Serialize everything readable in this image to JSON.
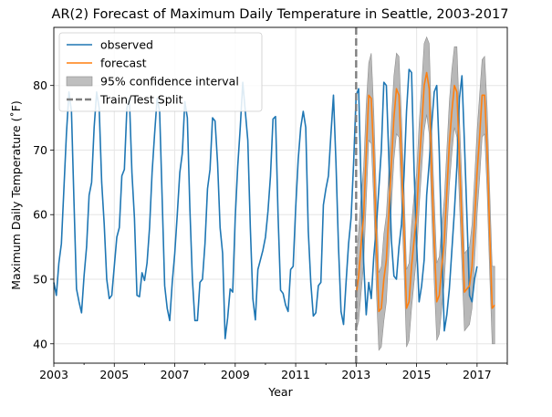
{
  "chart_data": {
    "type": "line",
    "title": "AR(2) Forecast of Maximum Daily Temperature in Seattle, 2003-2017",
    "xlabel": "Year",
    "ylabel": "Maximum Daily Temperature (˚F)",
    "xlim": [
      "2003-01",
      "2018-01"
    ],
    "ylim": [
      37,
      89
    ],
    "grid": true,
    "legend_position": "top-left",
    "x_ticks": [
      "2003",
      "2005",
      "2007",
      "2009",
      "2011",
      "2013",
      "2015",
      "2017"
    ],
    "y_ticks": [
      "40",
      "50",
      "60",
      "70",
      "80"
    ],
    "split_date": "2013-01",
    "colors": {
      "observed": "#1f77b4",
      "forecast": "#ff7f0e",
      "ci": "#a0a0a0",
      "split": "#7f7f7f"
    },
    "legend": [
      {
        "label": "observed",
        "kind": "line",
        "color": "#1f77b4"
      },
      {
        "label": "forecast",
        "kind": "line",
        "color": "#ff7f0e"
      },
      {
        "label": "95% confidence interval",
        "kind": "patch",
        "color": "#bfbfbf"
      },
      {
        "label": "Train/Test Split",
        "kind": "dash",
        "color": "#7f7f7f"
      }
    ],
    "observed": {
      "start": "2003-01",
      "values": [
        49.5,
        47.5,
        52.5,
        55.5,
        64.0,
        72.5,
        79.0,
        76.0,
        62.0,
        48.5,
        46.5,
        44.8,
        50.5,
        55.0,
        63.0,
        65.0,
        73.5,
        79.0,
        76.5,
        65.0,
        58.5,
        50.0,
        47.0,
        47.5,
        52.0,
        56.5,
        58.0,
        66.0,
        67.0,
        76.5,
        78.0,
        66.5,
        59.5,
        47.5,
        47.3,
        51.0,
        49.8,
        52.5,
        58.0,
        66.5,
        72.5,
        78.0,
        76.0,
        62.5,
        49.0,
        45.5,
        43.6,
        49.5,
        54.0,
        60.0,
        66.5,
        69.5,
        77.5,
        75.0,
        61.0,
        50.0,
        43.6,
        43.6,
        49.5,
        50.0,
        55.5,
        64.0,
        67.0,
        75.0,
        74.5,
        68.0,
        58.0,
        54.0,
        40.8,
        44.0,
        48.5,
        48.0,
        59.5,
        67.5,
        73.5,
        80.5,
        76.0,
        71.5,
        58.0,
        47.0,
        43.7,
        51.5,
        53.0,
        54.5,
        56.5,
        60.5,
        66.0,
        74.8,
        75.2,
        60.0,
        48.3,
        47.8,
        46.0,
        45.0,
        51.5,
        52.0,
        61.0,
        68.5,
        73.5,
        76.0,
        73.5,
        57.5,
        49.5,
        44.3,
        44.8,
        49.0,
        49.5,
        61.5,
        64.0,
        66.0,
        72.5,
        78.5,
        68.0,
        55.0,
        45.0,
        43.0,
        49.5,
        55.5,
        59.5,
        68.0,
        78.5,
        79.5,
        64.0,
        52.5,
        44.5,
        49.5,
        47.0,
        53.5,
        58.0,
        64.0,
        70.0,
        80.5,
        80.0,
        68.5,
        56.0,
        50.5,
        50.0,
        55.0,
        58.5,
        66.0,
        76.0,
        82.5,
        82.0,
        67.0,
        55.5,
        46.5,
        49.0,
        53.0,
        63.0,
        68.0,
        74.0,
        79.0,
        80.0,
        69.5,
        55.0,
        42.0,
        44.5,
        48.5,
        54.5,
        60.5,
        67.5,
        78.0,
        81.5,
        71.0,
        59.5,
        47.5,
        46.5,
        50.0,
        52.0
      ]
    },
    "forecast": {
      "start": "2013-01",
      "values": [
        47.5,
        50.5,
        55.5,
        60.0,
        69.5,
        78.5,
        78.0,
        69.0,
        56.0,
        45.0,
        45.5,
        50.0,
        53.0,
        60.5,
        68.0,
        75.0,
        79.5,
        78.5,
        68.5,
        58.0,
        45.5,
        46.5,
        52.0,
        56.0,
        60.0,
        67.5,
        73.5,
        80.0,
        82.0,
        79.5,
        66.5,
        56.0,
        46.5,
        47.5,
        52.0,
        56.0,
        63.5,
        71.0,
        76.0,
        80.0,
        79.0,
        68.5,
        58.5,
        48.0,
        48.5,
        49.0,
        52.0,
        59.0,
        66.5,
        72.0,
        78.5,
        78.5,
        70.0,
        57.5,
        45.5,
        46.0
      ]
    },
    "ci_lower": {
      "start": "2013-01",
      "values": [
        42.0,
        43.5,
        48.0,
        52.5,
        62.0,
        71.5,
        71.0,
        62.0,
        48.5,
        39.0,
        39.5,
        43.5,
        46.5,
        54.0,
        61.5,
        68.5,
        72.5,
        72.0,
        62.0,
        51.5,
        39.5,
        40.5,
        45.5,
        49.5,
        53.5,
        61.0,
        67.0,
        73.0,
        75.5,
        72.5,
        60.0,
        49.5,
        40.5,
        41.5,
        45.5,
        49.5,
        57.0,
        64.5,
        69.5,
        73.5,
        72.0,
        62.0,
        52.0,
        42.0,
        42.5,
        43.0,
        45.5,
        52.5,
        60.0,
        65.5,
        72.0,
        72.5,
        63.5,
        51.0,
        40.0,
        40.0
      ]
    },
    "ci_upper": {
      "start": "2013-01",
      "values": [
        53.0,
        57.5,
        63.0,
        67.5,
        77.0,
        83.5,
        85.0,
        76.0,
        63.5,
        51.0,
        52.0,
        57.0,
        60.0,
        67.0,
        74.5,
        81.5,
        85.0,
        84.5,
        75.0,
        64.5,
        51.5,
        52.5,
        58.5,
        63.0,
        66.5,
        74.0,
        80.0,
        86.5,
        87.5,
        86.5,
        73.0,
        62.5,
        52.5,
        53.5,
        58.5,
        62.5,
        70.0,
        77.5,
        82.5,
        86.0,
        86.0,
        75.0,
        65.0,
        54.0,
        54.5,
        55.0,
        58.5,
        65.5,
        73.0,
        78.5,
        84.0,
        84.5,
        76.5,
        64.0,
        52.0,
        52.0
      ]
    }
  }
}
